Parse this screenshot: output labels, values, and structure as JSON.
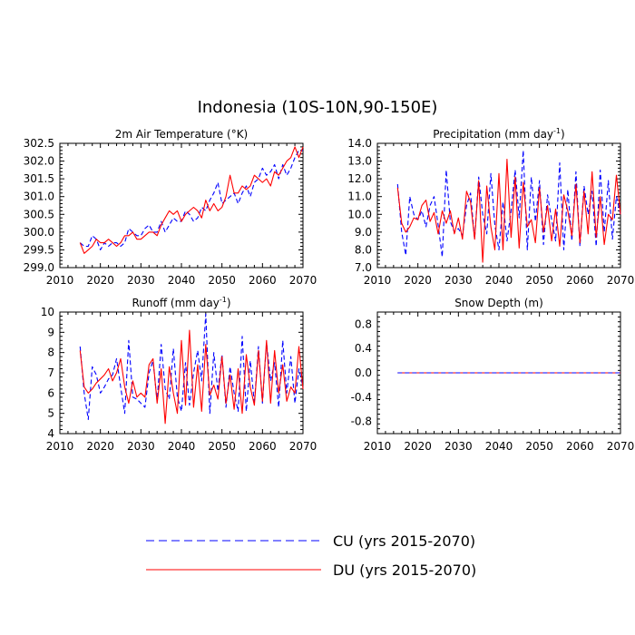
{
  "title": "Indonesia (10S-10N,90-150E)",
  "colors": {
    "CU": "#0000ff",
    "DU": "#ff0000"
  },
  "legend": [
    {
      "key": "CU",
      "label": "CU (yrs 2015-2070)",
      "style": "dashed"
    },
    {
      "key": "DU",
      "label": "DU (yrs 2015-2070)",
      "style": "solid"
    }
  ],
  "chart_data": [
    {
      "id": "temperature",
      "type": "line",
      "title": "2m Air Temperature (°K)",
      "x": [
        2015,
        2016,
        2017,
        2018,
        2019,
        2020,
        2021,
        2022,
        2023,
        2024,
        2025,
        2026,
        2027,
        2028,
        2029,
        2030,
        2031,
        2032,
        2033,
        2034,
        2035,
        2036,
        2037,
        2038,
        2039,
        2040,
        2041,
        2042,
        2043,
        2044,
        2045,
        2046,
        2047,
        2048,
        2049,
        2050,
        2051,
        2052,
        2053,
        2054,
        2055,
        2056,
        2057,
        2058,
        2059,
        2060,
        2061,
        2062,
        2063,
        2064,
        2065,
        2066,
        2067,
        2068,
        2069,
        2070
      ],
      "xlim": [
        2010,
        2070
      ],
      "xticks": [
        2010,
        2020,
        2030,
        2040,
        2050,
        2060,
        2070
      ],
      "ylim": [
        299.0,
        302.5
      ],
      "yticks": [
        299.0,
        299.5,
        300.0,
        300.5,
        301.0,
        301.5,
        302.0,
        302.5
      ],
      "ytick_labels": [
        "299.0",
        "299.5",
        "300.0",
        "300.5",
        "301.0",
        "301.5",
        "302.0",
        "302.5"
      ],
      "series": [
        {
          "name": "CU",
          "values": [
            299.7,
            299.6,
            299.6,
            299.9,
            299.8,
            299.5,
            299.7,
            299.6,
            299.7,
            299.7,
            299.6,
            299.7,
            300.1,
            300.0,
            299.9,
            299.9,
            300.1,
            300.2,
            300.0,
            300.0,
            300.3,
            300.0,
            300.2,
            300.4,
            300.3,
            300.3,
            300.6,
            300.5,
            300.3,
            300.4,
            300.7,
            300.6,
            300.9,
            301.1,
            301.4,
            300.8,
            300.9,
            301.0,
            301.1,
            300.8,
            301.1,
            301.3,
            301.0,
            301.4,
            301.5,
            301.8,
            301.6,
            301.7,
            301.9,
            301.5,
            301.9,
            301.6,
            301.8,
            302.1,
            302.3,
            302.3
          ]
        },
        {
          "name": "DU",
          "values": [
            299.7,
            299.4,
            299.5,
            299.6,
            299.8,
            299.7,
            299.7,
            299.8,
            299.7,
            299.6,
            299.7,
            299.9,
            299.9,
            300.0,
            299.8,
            299.8,
            299.9,
            300.0,
            300.0,
            299.9,
            300.2,
            300.4,
            300.6,
            300.5,
            300.6,
            300.3,
            300.5,
            300.6,
            300.7,
            300.6,
            300.4,
            300.9,
            300.6,
            300.8,
            300.6,
            300.7,
            301.0,
            301.6,
            301.1,
            301.1,
            301.3,
            301.2,
            301.3,
            301.6,
            301.5,
            301.4,
            301.5,
            301.3,
            301.7,
            301.6,
            301.8,
            302.0,
            302.1,
            302.4,
            302.1,
            302.4
          ]
        }
      ]
    },
    {
      "id": "precipitation",
      "type": "line",
      "title": "Precipitation (mm day",
      "title_superscript": "-1",
      "title_suffix": ")",
      "x": [
        2015,
        2016,
        2017,
        2018,
        2019,
        2020,
        2021,
        2022,
        2023,
        2024,
        2025,
        2026,
        2027,
        2028,
        2029,
        2030,
        2031,
        2032,
        2033,
        2034,
        2035,
        2036,
        2037,
        2038,
        2039,
        2040,
        2041,
        2042,
        2043,
        2044,
        2045,
        2046,
        2047,
        2048,
        2049,
        2050,
        2051,
        2052,
        2053,
        2054,
        2055,
        2056,
        2057,
        2058,
        2059,
        2060,
        2061,
        2062,
        2063,
        2064,
        2065,
        2066,
        2067,
        2068,
        2069,
        2070
      ],
      "xlim": [
        2010,
        2070
      ],
      "xticks": [
        2010,
        2020,
        2030,
        2040,
        2050,
        2060,
        2070
      ],
      "ylim": [
        7.0,
        14.0
      ],
      "yticks": [
        7.0,
        8.0,
        9.0,
        10.0,
        11.0,
        12.0,
        13.0,
        14.0
      ],
      "ytick_labels": [
        "7.0",
        "8.0",
        "9.0",
        "10.0",
        "11.0",
        "12.0",
        "13.0",
        "14.0"
      ],
      "series": [
        {
          "name": "CU",
          "values": [
            11.7,
            9.0,
            7.7,
            11.0,
            10.0,
            9.7,
            10.2,
            9.3,
            10.5,
            11.0,
            9.4,
            7.6,
            12.5,
            9.6,
            9.0,
            9.2,
            8.8,
            10.5,
            11.2,
            8.6,
            12.1,
            10.0,
            8.9,
            12.3,
            9.4,
            8.0,
            10.7,
            8.5,
            10.2,
            12.5,
            9.8,
            13.6,
            8.0,
            12.1,
            9.6,
            11.9,
            8.3,
            11.1,
            9.7,
            8.5,
            12.9,
            8.0,
            11.4,
            8.5,
            12.4,
            8.2,
            11.6,
            10.0,
            11.3,
            8.2,
            12.5,
            9.0,
            11.9,
            8.6,
            11.0,
            10.0
          ]
        },
        {
          "name": "DU",
          "values": [
            11.5,
            9.5,
            9.0,
            9.3,
            9.8,
            9.7,
            10.5,
            10.8,
            9.6,
            10.1,
            8.9,
            10.2,
            9.5,
            10.2,
            8.9,
            9.8,
            8.6,
            11.3,
            10.7,
            8.6,
            11.9,
            7.3,
            11.6,
            9.3,
            8.0,
            12.3,
            8.0,
            13.1,
            8.7,
            12.1,
            8.1,
            11.8,
            9.3,
            9.7,
            8.4,
            11.5,
            9.0,
            10.5,
            8.5,
            10.3,
            8.2,
            11.1,
            10.2,
            8.8,
            11.7,
            8.4,
            11.3,
            8.9,
            12.4,
            8.7,
            11.0,
            8.3,
            10.0,
            9.7,
            12.2,
            10.0
          ]
        }
      ]
    },
    {
      "id": "runoff",
      "type": "line",
      "title": "Runoff (mm day",
      "title_superscript": "-1",
      "title_suffix": ")",
      "x": [
        2015,
        2016,
        2017,
        2018,
        2019,
        2020,
        2021,
        2022,
        2023,
        2024,
        2025,
        2026,
        2027,
        2028,
        2029,
        2030,
        2031,
        2032,
        2033,
        2034,
        2035,
        2036,
        2037,
        2038,
        2039,
        2040,
        2041,
        2042,
        2043,
        2044,
        2045,
        2046,
        2047,
        2048,
        2049,
        2050,
        2051,
        2052,
        2053,
        2054,
        2055,
        2056,
        2057,
        2058,
        2059,
        2060,
        2061,
        2062,
        2063,
        2064,
        2065,
        2066,
        2067,
        2068,
        2069,
        2070
      ],
      "xlim": [
        2010,
        2070
      ],
      "xticks": [
        2010,
        2020,
        2030,
        2040,
        2050,
        2060,
        2070
      ],
      "ylim": [
        4,
        10
      ],
      "yticks": [
        4,
        5,
        6,
        7,
        8,
        9,
        10
      ],
      "ytick_labels": [
        "4",
        "5",
        "6",
        "7",
        "8",
        "9",
        "10"
      ],
      "series": [
        {
          "name": "CU",
          "values": [
            8.3,
            6.0,
            4.7,
            7.3,
            6.9,
            6.0,
            6.3,
            6.7,
            6.9,
            7.7,
            6.3,
            5.0,
            8.6,
            5.8,
            5.7,
            5.5,
            5.3,
            7.0,
            7.6,
            5.6,
            8.4,
            6.2,
            5.7,
            8.2,
            5.8,
            5.1,
            7.5,
            5.4,
            7.0,
            8.1,
            6.6,
            9.9,
            5.0,
            8.0,
            6.1,
            7.9,
            5.3,
            7.3,
            6.0,
            5.1,
            8.8,
            5.1,
            7.6,
            5.5,
            8.3,
            5.5,
            8.5,
            6.6,
            7.5,
            5.3,
            8.6,
            6.0,
            7.8,
            5.5,
            7.2,
            6.3
          ]
        },
        {
          "name": "DU",
          "values": [
            8.1,
            6.3,
            6.0,
            6.2,
            6.5,
            6.7,
            6.9,
            7.2,
            6.6,
            7.0,
            7.7,
            6.3,
            5.5,
            6.6,
            5.8,
            6.0,
            5.8,
            7.4,
            7.7,
            5.5,
            7.2,
            4.5,
            7.3,
            6.0,
            5.0,
            8.6,
            5.4,
            9.1,
            5.3,
            7.4,
            5.1,
            8.4,
            5.9,
            6.4,
            5.7,
            7.8,
            5.5,
            6.9,
            5.2,
            7.2,
            5.0,
            7.9,
            6.3,
            5.4,
            8.1,
            5.6,
            8.6,
            5.5,
            8.1,
            6.0,
            7.4,
            5.6,
            6.3,
            6.0,
            8.3,
            6.2
          ]
        }
      ]
    },
    {
      "id": "snow",
      "type": "line",
      "title": "Snow Depth (m)",
      "x": [
        2015,
        2070
      ],
      "xlim": [
        2010,
        2070
      ],
      "xticks": [
        2010,
        2020,
        2030,
        2040,
        2050,
        2060,
        2070
      ],
      "ylim": [
        -1.0,
        1.0
      ],
      "yticks": [
        -0.8,
        -0.4,
        0.0,
        0.4,
        0.8
      ],
      "ytick_labels": [
        "-0.8",
        "-0.4",
        "0.0",
        "0.4",
        "0.8"
      ],
      "series": [
        {
          "name": "DU",
          "values": [
            0.0,
            0.0
          ]
        },
        {
          "name": "CU",
          "values": [
            0.0,
            0.0
          ]
        }
      ]
    }
  ]
}
